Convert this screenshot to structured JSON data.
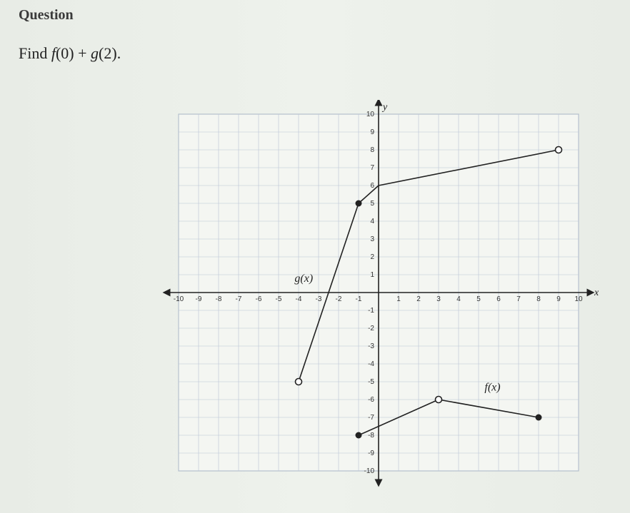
{
  "heading": "Question",
  "prompt_prefix": "Find ",
  "prompt_expr_f": "f",
  "prompt_expr_mid1": "(0) + ",
  "prompt_expr_g": "g",
  "prompt_expr_mid2": "(2).",
  "chart": {
    "type": "line",
    "background_color": "#f4f6f2",
    "grid_color": "#b8c4d4",
    "axis_color": "#222222",
    "line_color": "#222222",
    "line_width": 1.6,
    "point_radius": 4.5,
    "xlim": [
      -10,
      10
    ],
    "ylim": [
      -10,
      10
    ],
    "xtick_step": 1,
    "ytick_step": 1,
    "xticks_labeled": [
      -10,
      -9,
      -8,
      -7,
      -6,
      -5,
      -4,
      -3,
      -2,
      -1,
      1,
      2,
      3,
      4,
      5,
      6,
      7,
      8,
      9,
      10
    ],
    "yticks_labeled": [
      -10,
      -9,
      -8,
      -7,
      -6,
      -5,
      -4,
      -3,
      -2,
      -1,
      1,
      2,
      3,
      4,
      5,
      6,
      7,
      8,
      9,
      10
    ],
    "x_axis_label": "x",
    "y_axis_label": "y",
    "tick_fontsize": 10,
    "axis_label_fontsize": 14,
    "series": [
      {
        "name": "g(x)",
        "label_pos": {
          "x": -4.2,
          "y": 0.6
        },
        "segments": [
          {
            "from": {
              "x": -4,
              "y": -5,
              "fill": "open"
            },
            "to": {
              "x": -1,
              "y": 5,
              "fill": "closed"
            }
          },
          {
            "from": {
              "x": -1,
              "y": 5,
              "fill": "closed"
            },
            "to": {
              "x": 0,
              "y": 6,
              "fill": "none"
            }
          },
          {
            "from": {
              "x": 0,
              "y": 6,
              "fill": "none"
            },
            "to": {
              "x": 9,
              "y": 8,
              "fill": "open"
            }
          }
        ]
      },
      {
        "name": "f(x)",
        "label_pos": {
          "x": 5.3,
          "y": -5.5
        },
        "segments": [
          {
            "from": {
              "x": -1,
              "y": -8,
              "fill": "closed"
            },
            "to": {
              "x": 3,
              "y": -6,
              "fill": "open"
            }
          },
          {
            "from": {
              "x": 3,
              "y": -6,
              "fill": "open"
            },
            "to": {
              "x": 8,
              "y": -7,
              "fill": "closed"
            }
          }
        ]
      }
    ]
  }
}
